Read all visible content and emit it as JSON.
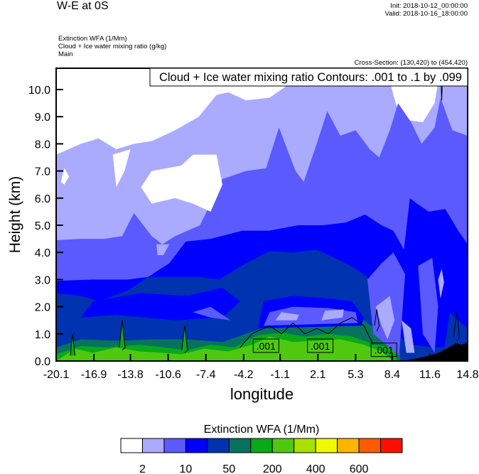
{
  "header": {
    "title": "W-E at 0S",
    "init": "Init: 2018-10-12_00:00:00",
    "valid": "Valid: 2018-10-16_18:00:00",
    "subtitle_lines": [
      "Extinction WFA   (1/Mm)",
      "Cloud + Ice water mixing ratio    (g/kg)",
      "Main"
    ],
    "cross_section": "Cross-Section: (130,420) to (454,420)"
  },
  "chart_data": {
    "type": "heatmap",
    "title": "W-E at 0S",
    "contour_info": "Cloud + Ice water mixing ratio Contours: .001 to .1 by .099",
    "xlabel": "longitude",
    "ylabel": "Height (km)",
    "xlim": [
      -20.1,
      14.8
    ],
    "ylim": [
      0,
      10.8
    ],
    "xticks": [
      "-20.1",
      "-16.9",
      "-13.8",
      "-10.6",
      "-7.4",
      "-4.2",
      "-1.1",
      "2.1",
      "5.3",
      "8.4",
      "11.6",
      "14.8"
    ],
    "yticks": [
      "0.0",
      "1.0",
      "2.0",
      "3.0",
      "4.0",
      "5.0",
      "6.0",
      "7.0",
      "8.0",
      "9.0",
      "10.0"
    ],
    "colorbar": {
      "title": "Extinction WFA  (1/Mm)",
      "colors": [
        "#ffffff",
        "#aaaaff",
        "#5a5aff",
        "#0000ff",
        "#0033b0",
        "#08725e",
        "#08aa18",
        "#50c810",
        "#a8e000",
        "#f0f800",
        "#ffb400",
        "#ff5a00",
        "#ff1000"
      ],
      "labels": [
        "2",
        "10",
        "50",
        "200",
        "400",
        "600"
      ]
    },
    "levels": [
      {
        "name": "gt-2",
        "color": "#aaaaff",
        "lon": [
          -20.1,
          -18,
          -16.5,
          -15,
          -13.5,
          -12,
          -10,
          -8,
          -6.5,
          -5.5,
          -4,
          -2,
          0,
          2,
          4,
          6,
          8,
          8.7,
          9.2,
          11,
          12,
          12.5,
          14.8
        ],
        "top": [
          7.6,
          8.0,
          8.2,
          7.8,
          8.0,
          8.1,
          8.5,
          9.0,
          9.8,
          9.9,
          9.6,
          9.7,
          10.3,
          10.8,
          10.8,
          10.8,
          10.6,
          9.5,
          8.9,
          8.8,
          9.5,
          10.8,
          10.8
        ]
      },
      {
        "name": "gt-4",
        "color": "#5a5aff",
        "lon": [
          -20.1,
          -18,
          -16,
          -14.5,
          -13.5,
          -12,
          -11.1,
          -10,
          -7.9,
          -6,
          -4,
          -2.3,
          -1.2,
          0.2,
          0.9,
          2,
          2.9,
          4,
          5.3,
          6.5,
          7.3,
          8.2,
          8.9,
          10,
          10.9,
          12,
          12.5,
          13.5,
          14.8
        ],
        "top": [
          4.45,
          4.5,
          4.5,
          4.6,
          5.45,
          4.6,
          4.3,
          4.6,
          5.0,
          6.7,
          7.0,
          7.1,
          8.6,
          7.0,
          6.6,
          8.0,
          9.2,
          8.3,
          8.5,
          7.8,
          7.5,
          8.5,
          9.5,
          8.8,
          8.0,
          8.6,
          9.7,
          8.5,
          8.3
        ]
      },
      {
        "name": "gt-10",
        "color": "#0000ff",
        "lon": [
          -20.1,
          -17,
          -14,
          -12.3,
          -10.5,
          -9.1,
          -7,
          -4.3,
          -2,
          0.4,
          2.5,
          4.5,
          6.1,
          7.5,
          8.5,
          9.4,
          9.9,
          10.5,
          11.5,
          12.9,
          14,
          14.8
        ],
        "top": [
          2.95,
          3.0,
          3.0,
          3.1,
          3.6,
          4.4,
          4.5,
          4.8,
          4.8,
          5.0,
          5.0,
          5.1,
          5.4,
          5.0,
          4.8,
          4.1,
          6.0,
          5.8,
          5.5,
          5.6,
          4.8,
          4.3
        ]
      },
      {
        "name": "gt-20",
        "color": "#0033b0",
        "lon": [
          -20.1,
          -18,
          -16.5,
          -14,
          -12.3,
          -10,
          -8,
          -6.3,
          -4,
          -2,
          0,
          2,
          3.5,
          4.9,
          6.3,
          7.2,
          8.0,
          9.0,
          10,
          12,
          14.8
        ],
        "top": [
          2.5,
          2.4,
          2.2,
          2.6,
          3.1,
          3.1,
          3.1,
          3.0,
          3.6,
          4.05,
          4.0,
          4.1,
          3.8,
          3.5,
          3.1,
          2.0,
          1.2,
          0.9,
          0.6,
          0.5,
          0.5
        ]
      },
      {
        "name": "gt-50",
        "color": "#08725e",
        "lon": [
          -20.1,
          -18,
          -15,
          -12,
          -9,
          -6,
          -4,
          -2,
          0,
          2,
          4,
          6,
          7.5,
          8.5,
          9.0,
          9.1
        ],
        "top": [
          0.5,
          0.8,
          0.75,
          0.8,
          0.8,
          0.7,
          1.0,
          1.3,
          1.4,
          1.3,
          1.4,
          1.5,
          1.0,
          0.8,
          0.5,
          0
        ]
      },
      {
        "name": "gt-100",
        "color": "#08aa18",
        "lon": [
          -20.1,
          -18,
          -16,
          -13,
          -11,
          -9,
          -7,
          -5,
          -3,
          -1,
          1,
          3,
          5,
          7,
          8.6,
          8.8
        ],
        "top": [
          0.25,
          0.55,
          0.5,
          0.6,
          0.5,
          0.4,
          0.6,
          0.5,
          0.95,
          1.05,
          0.9,
          1.0,
          0.9,
          0.6,
          0.5,
          0
        ]
      },
      {
        "name": "gt-200",
        "color": "#50c810",
        "lon": [
          -20.1,
          -18.5,
          -17,
          -15,
          -13,
          -11,
          -9.5,
          -7.5,
          -5.5,
          -3.5,
          -2,
          0,
          2,
          4,
          6,
          7.5,
          8.5
        ],
        "top": [
          0,
          0.45,
          0.3,
          0.5,
          0.35,
          0.3,
          0.25,
          0.45,
          0.35,
          0.6,
          0.9,
          0.7,
          0.75,
          0.8,
          0.6,
          0.35,
          0
        ]
      }
    ],
    "pockets": [
      {
        "color": "#ffffff",
        "pts": [
          [
            -12.9,
            6.4
          ],
          [
            -12,
            7.0
          ],
          [
            -9.5,
            7.2
          ],
          [
            -8.5,
            7.6
          ],
          [
            -6.5,
            7.6
          ],
          [
            -6,
            6.5
          ],
          [
            -7,
            5.5
          ],
          [
            -8.5,
            5.8
          ],
          [
            -10,
            6.0
          ],
          [
            -12,
            5.8
          ]
        ]
      },
      {
        "color": "#ffffff",
        "pts": [
          [
            -19.7,
            6.6
          ],
          [
            -19.4,
            7.1
          ],
          [
            -19.0,
            6.8
          ],
          [
            -19.4,
            6.5
          ]
        ]
      },
      {
        "color": "#ffffff",
        "pts": [
          [
            -15.3,
            7.6
          ],
          [
            -15.0,
            6.4
          ],
          [
            -14.3,
            7.0
          ],
          [
            -13.8,
            7.8
          ]
        ]
      },
      {
        "color": "#aaaaff",
        "pts": [
          [
            -11.6,
            4.3
          ],
          [
            -11.5,
            3.9
          ],
          [
            -11,
            3.9
          ],
          [
            -10.5,
            4.3
          ]
        ]
      },
      {
        "color": "#0000ff",
        "pts": [
          [
            -18,
            1.6
          ],
          [
            -17,
            2.2
          ],
          [
            -13,
            2.5
          ],
          [
            -9,
            2.4
          ],
          [
            -6,
            2.7
          ],
          [
            -4.5,
            2.2
          ],
          [
            -6,
            1.6
          ],
          [
            -10,
            1.5
          ],
          [
            -15,
            1.7
          ]
        ]
      },
      {
        "color": "#5a5aff",
        "pts": [
          [
            -8.5,
            1.8
          ],
          [
            -7,
            2.0
          ],
          [
            -5.3,
            1.5
          ],
          [
            -7,
            1.6
          ]
        ]
      },
      {
        "color": "#0000ff",
        "pts": [
          [
            -3,
            1.2
          ],
          [
            -2.5,
            2.2
          ],
          [
            0,
            2.4
          ],
          [
            3,
            2.3
          ],
          [
            5,
            2.2
          ],
          [
            6,
            1.6
          ],
          [
            5.8,
            1.3
          ]
        ]
      },
      {
        "color": "#5a5aff",
        "pts": [
          [
            -2.5,
            1.3
          ],
          [
            -2,
            1.8
          ],
          [
            0,
            2.0
          ],
          [
            3,
            1.95
          ],
          [
            5.3,
            1.8
          ],
          [
            5.5,
            1.4
          ]
        ]
      },
      {
        "color": "#aaaaff",
        "pts": [
          [
            -1.5,
            1.5
          ],
          [
            -1,
            1.8
          ],
          [
            0.5,
            1.7
          ],
          [
            0.3,
            1.5
          ]
        ]
      },
      {
        "color": "#aaaaff",
        "pts": [
          [
            2.4,
            1.5
          ],
          [
            2.7,
            1.85
          ],
          [
            4.3,
            1.9
          ],
          [
            4.2,
            1.6
          ]
        ]
      },
      {
        "color": "#5a5aff",
        "pts": [
          [
            6.3,
            3.0
          ],
          [
            6.8,
            1.0
          ],
          [
            9.0,
            0.2
          ],
          [
            9.5,
            3.2
          ],
          [
            8.5,
            4.0
          ],
          [
            7.5,
            3.6
          ]
        ]
      },
      {
        "color": "#aaaaff",
        "pts": [
          [
            7.0,
            2.0
          ],
          [
            7.5,
            1.3
          ],
          [
            8.0,
            0.8
          ],
          [
            8.6,
            1.5
          ],
          [
            8.2,
            2.4
          ]
        ]
      },
      {
        "color": "#aaaaff",
        "pts": [
          [
            9.2,
            1.5
          ],
          [
            9.6,
            0.3
          ],
          [
            10.3,
            0.3
          ],
          [
            10.0,
            1.2
          ]
        ]
      },
      {
        "color": "#5a5aff",
        "pts": [
          [
            10.6,
            3.5
          ],
          [
            11.0,
            1.0
          ],
          [
            12.0,
            0.3
          ],
          [
            12.3,
            2.0
          ],
          [
            11.8,
            3.8
          ]
        ]
      },
      {
        "color": "#aaaaff",
        "pts": [
          [
            12.3,
            3.0
          ],
          [
            12.5,
            2.3
          ],
          [
            12.8,
            2.9
          ],
          [
            12.6,
            3.4
          ]
        ]
      },
      {
        "color": "#0033b0",
        "pts": [
          [
            12.8,
            0.4
          ],
          [
            13.3,
            1.8
          ],
          [
            14.0,
            1.5
          ],
          [
            14.8,
            1.2
          ],
          [
            14.8,
            0.5
          ]
        ]
      },
      {
        "color": "#08aa18",
        "pts": [
          [
            -14.7,
            0.5
          ],
          [
            -14.5,
            1.5
          ],
          [
            -14.3,
            0.5
          ]
        ]
      },
      {
        "color": "#08aa18",
        "pts": [
          [
            -9.4,
            0.4
          ],
          [
            -9.2,
            1.3
          ],
          [
            -9.0,
            0.4
          ]
        ]
      },
      {
        "color": "#08aa18",
        "pts": [
          [
            -18.9,
            0.2
          ],
          [
            -18.7,
            1.0
          ],
          [
            -18.5,
            0.2
          ]
        ]
      }
    ],
    "terrain": {
      "color": "#000000",
      "lon": [
        9.3,
        10.5,
        11.6,
        12.3,
        13,
        13.8,
        14.3,
        14.8
      ],
      "top": [
        0,
        0.1,
        0.2,
        0.3,
        0.45,
        0.65,
        0.6,
        0.7
      ]
    },
    "contours": [
      {
        "pts": [
          [
            -14.75,
            0.5
          ],
          [
            -14.5,
            1.5
          ],
          [
            -14.25,
            0.5
          ],
          [
            -14.5,
            0.4
          ]
        ]
      },
      {
        "pts": [
          [
            -9.45,
            0.4
          ],
          [
            -9.2,
            1.3
          ],
          [
            -8.95,
            0.4
          ],
          [
            -9.2,
            0.3
          ]
        ]
      },
      {
        "pts": [
          [
            -18.9,
            0.2
          ],
          [
            -18.7,
            1.0
          ],
          [
            -18.5,
            0.2
          ]
        ]
      },
      {
        "pts": [
          [
            -4.5,
            0.5
          ],
          [
            -3.5,
            1.0
          ],
          [
            -2,
            1.3
          ],
          [
            -1,
            1.0
          ],
          [
            0,
            1.4
          ],
          [
            1,
            1.0
          ],
          [
            2,
            1.2
          ],
          [
            3,
            1.0
          ],
          [
            4,
            1.4
          ],
          [
            5,
            1.6
          ],
          [
            6,
            1.3
          ],
          [
            6.8,
            0.6
          ]
        ]
      },
      {
        "pts": [
          [
            6.9,
            1.3
          ],
          [
            7.1,
            1.9
          ],
          [
            7.3,
            1.3
          ],
          [
            7.1,
            1.1
          ]
        ]
      },
      {
        "pts": [
          [
            13.6,
            0.9
          ],
          [
            13.9,
            1.8
          ],
          [
            14.1,
            0.9
          ],
          [
            13.9,
            0.7
          ]
        ]
      },
      {
        "pts": [
          [
            12.5,
            10.8
          ],
          [
            12.6,
            9.6
          ],
          [
            12.7,
            10.8
          ]
        ]
      }
    ],
    "contour_labels": [
      {
        "text": ".001",
        "lon": -2.3,
        "km": 0.55
      },
      {
        "text": ".001",
        "lon": 2.3,
        "km": 0.55
      },
      {
        "text": ".001",
        "lon": 7.7,
        "km": 0.4
      }
    ]
  }
}
